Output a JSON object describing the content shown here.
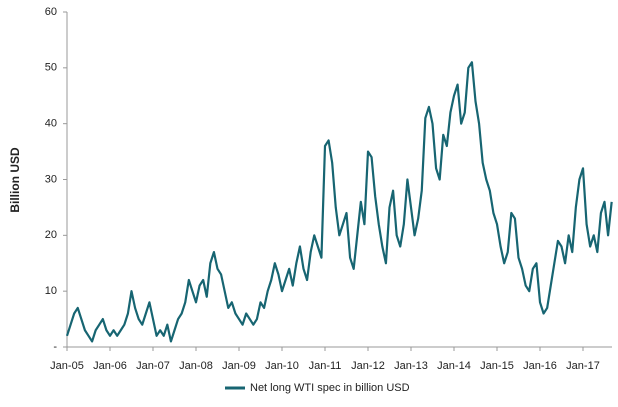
{
  "chart_data": {
    "type": "line",
    "y_label": "Billion USD",
    "categories": [
      "Jan-05",
      null,
      null,
      null,
      null,
      null,
      null,
      null,
      null,
      null,
      null,
      null,
      "Jan-06",
      null,
      null,
      null,
      null,
      null,
      null,
      null,
      null,
      null,
      null,
      null,
      "Jan-07",
      null,
      null,
      null,
      null,
      null,
      null,
      null,
      null,
      null,
      null,
      null,
      "Jan-08",
      null,
      null,
      null,
      null,
      null,
      null,
      null,
      null,
      null,
      null,
      null,
      "Jan-09",
      null,
      null,
      null,
      null,
      null,
      null,
      null,
      null,
      null,
      null,
      null,
      "Jan-10",
      null,
      null,
      null,
      null,
      null,
      null,
      null,
      null,
      null,
      null,
      null,
      "Jan-11",
      null,
      null,
      null,
      null,
      null,
      null,
      null,
      null,
      null,
      null,
      null,
      "Jan-12",
      null,
      null,
      null,
      null,
      null,
      null,
      null,
      null,
      null,
      null,
      null,
      "Jan-13",
      null,
      null,
      null,
      null,
      null,
      null,
      null,
      null,
      null,
      null,
      null,
      "Jan-14",
      null,
      null,
      null,
      null,
      null,
      null,
      null,
      null,
      null,
      null,
      null,
      "Jan-15",
      null,
      null,
      null,
      null,
      null,
      null,
      null,
      null,
      null,
      null,
      null,
      "Jan-16",
      null,
      null,
      null,
      null,
      null,
      null,
      null,
      null,
      null,
      null,
      null,
      "Jan-17",
      null,
      null,
      null,
      null,
      null,
      null,
      null,
      null
    ],
    "series": [
      {
        "name": "Net long WTI spec in billion USD",
        "color": "#176572",
        "values": [
          2,
          4,
          6,
          7,
          5,
          3,
          2,
          1,
          3,
          4,
          5,
          3,
          2,
          3,
          2,
          3,
          4,
          6,
          10,
          7,
          5,
          4,
          6,
          8,
          5,
          2,
          3,
          2,
          4,
          1,
          3,
          5,
          6,
          8,
          12,
          10,
          8,
          11,
          12,
          9,
          15,
          17,
          14,
          13,
          10,
          7,
          8,
          6,
          5,
          4,
          6,
          5,
          4,
          5,
          8,
          7,
          10,
          12,
          15,
          13,
          10,
          12,
          14,
          11,
          15,
          18,
          14,
          12,
          17,
          20,
          18,
          16,
          36,
          37,
          33,
          25,
          20,
          22,
          24,
          16,
          14,
          20,
          26,
          22,
          35,
          34,
          27,
          22,
          18,
          15,
          25,
          28,
          20,
          18,
          22,
          30,
          25,
          20,
          23,
          28,
          41,
          43,
          40,
          32,
          30,
          38,
          36,
          42,
          45,
          47,
          40,
          42,
          50,
          51,
          44,
          40,
          33,
          30,
          28,
          24,
          22,
          18,
          15,
          17,
          24,
          23,
          16,
          14,
          11,
          10,
          14,
          15,
          8,
          6,
          7,
          11,
          15,
          19,
          18,
          15,
          20,
          17,
          25,
          30,
          32,
          22,
          18,
          20,
          17,
          24,
          26,
          20,
          26
        ]
      }
    ],
    "ylim": [
      0,
      60
    ],
    "yticks": [
      {
        "value": 0,
        "label": "-"
      },
      10,
      20,
      30,
      40,
      50,
      60
    ],
    "grid": false,
    "legend": "bottom"
  }
}
